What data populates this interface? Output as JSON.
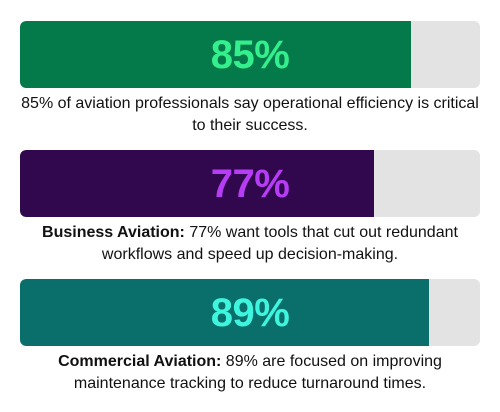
{
  "chart_data": {
    "type": "bar",
    "categories": [
      "Aviation professionals",
      "Business Aviation",
      "Commercial Aviation"
    ],
    "values": [
      85,
      77,
      89
    ],
    "unit": "%",
    "ylim": [
      0,
      100
    ],
    "bars": [
      {
        "value": 85,
        "label": "85%",
        "caption_bold": "",
        "caption_text": "85% of aviation professionals say operational efficiency is critical to their success.",
        "fill_color": "#047a4a",
        "text_color": "#33f08c"
      },
      {
        "value": 77,
        "label": "77%",
        "caption_bold": "Business Aviation:",
        "caption_text": " 77% want tools that cut out redundant workflows and speed up decision-making.",
        "fill_color": "#31084d",
        "text_color": "#b63df5"
      },
      {
        "value": 89,
        "label": "89%",
        "caption_bold": "Commercial Aviation:",
        "caption_text": " 89% are focused on improving maintenance tracking to reduce turnaround times.",
        "fill_color": "#0a6e6b",
        "text_color": "#3ef5de"
      }
    ],
    "track_color": "#e3e3e3"
  }
}
